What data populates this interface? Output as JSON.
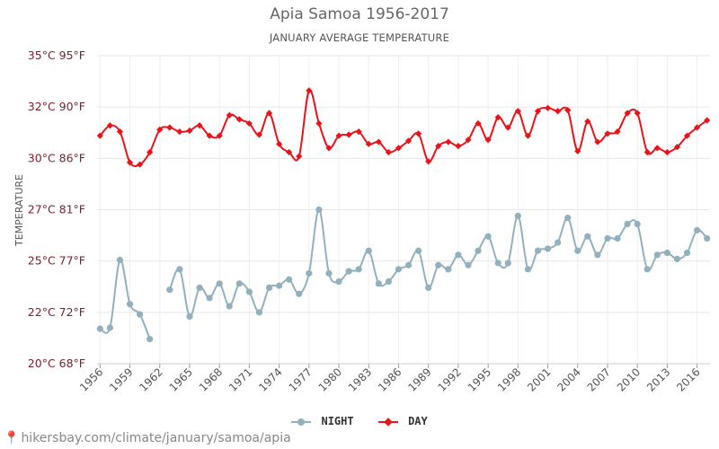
{
  "chart_data": {
    "type": "line",
    "title": "Apia Samoa 1956-2017",
    "subtitle": "JANUARY AVERAGE TEMPERATURE",
    "ylabel": "TEMPERATURE",
    "y_unit": "°C",
    "ylim": [
      20,
      35
    ],
    "yticks": [
      {
        "value": 20,
        "label": "20°C 68°F"
      },
      {
        "value": 22.5,
        "label": "22°C 72°F"
      },
      {
        "value": 25,
        "label": "25°C 77°F"
      },
      {
        "value": 27.5,
        "label": "27°C 81°F"
      },
      {
        "value": 30,
        "label": "30°C 86°F"
      },
      {
        "value": 32.5,
        "label": "32°C 90°F"
      },
      {
        "value": 35,
        "label": "35°C 95°F"
      }
    ],
    "xlim": [
      1955.7,
      2017.3
    ],
    "xticks": [
      1956,
      1959,
      1962,
      1965,
      1968,
      1971,
      1974,
      1977,
      1980,
      1983,
      1986,
      1989,
      1992,
      1995,
      1998,
      2001,
      2004,
      2007,
      2010,
      2013,
      2016
    ],
    "grid": true,
    "legend_position": "bottom-center",
    "x": [
      1956,
      1957,
      1958,
      1959,
      1960,
      1961,
      1962,
      1963,
      1964,
      1965,
      1966,
      1967,
      1968,
      1969,
      1970,
      1971,
      1972,
      1973,
      1974,
      1975,
      1976,
      1977,
      1978,
      1979,
      1980,
      1981,
      1982,
      1983,
      1984,
      1985,
      1986,
      1987,
      1988,
      1989,
      1990,
      1991,
      1992,
      1993,
      1994,
      1995,
      1996,
      1997,
      1998,
      1999,
      2000,
      2001,
      2002,
      2003,
      2004,
      2005,
      2006,
      2007,
      2008,
      2009,
      2010,
      2011,
      2012,
      2013,
      2014,
      2015,
      2016,
      2017
    ],
    "series": [
      {
        "name": "NIGHT",
        "color": "#92b1bf",
        "marker": "circle",
        "values": [
          21.7,
          21.75,
          25.05,
          22.9,
          22.4,
          21.2,
          null,
          23.6,
          24.6,
          22.3,
          23.7,
          23.2,
          23.9,
          22.8,
          23.9,
          23.5,
          22.5,
          23.7,
          23.8,
          24.1,
          23.4,
          24.4,
          27.5,
          24.4,
          24.0,
          24.5,
          24.6,
          25.5,
          23.9,
          24.0,
          24.6,
          24.8,
          25.5,
          23.7,
          24.8,
          24.6,
          25.3,
          24.8,
          25.5,
          26.2,
          24.9,
          24.9,
          27.2,
          24.6,
          25.5,
          25.6,
          25.9,
          27.1,
          25.5,
          26.2,
          25.3,
          26.1,
          26.1,
          26.8,
          26.8,
          24.6,
          25.3,
          25.4,
          25.1,
          25.4,
          26.5,
          26.1
        ]
      },
      {
        "name": "DAY",
        "color": "#e8141a",
        "marker": "diamond",
        "values": [
          31.1,
          31.6,
          31.3,
          29.8,
          29.7,
          30.3,
          31.4,
          31.5,
          31.3,
          31.35,
          31.6,
          31.1,
          31.1,
          32.1,
          31.9,
          31.7,
          31.15,
          32.2,
          30.7,
          30.3,
          30.1,
          33.3,
          31.7,
          30.5,
          31.1,
          31.15,
          31.3,
          30.7,
          30.8,
          30.3,
          30.5,
          30.85,
          31.2,
          29.85,
          30.6,
          30.8,
          30.6,
          30.9,
          31.7,
          30.9,
          32.0,
          31.5,
          32.3,
          31.1,
          32.3,
          32.45,
          32.3,
          32.35,
          30.35,
          31.8,
          30.8,
          31.2,
          31.3,
          32.2,
          32.2,
          30.3,
          30.5,
          30.3,
          30.55,
          31.1,
          31.5,
          31.85
        ]
      }
    ]
  },
  "source": {
    "text": "hikersbay.com/climate/january/samoa/apia",
    "pin_icon": "location-pin-icon"
  }
}
